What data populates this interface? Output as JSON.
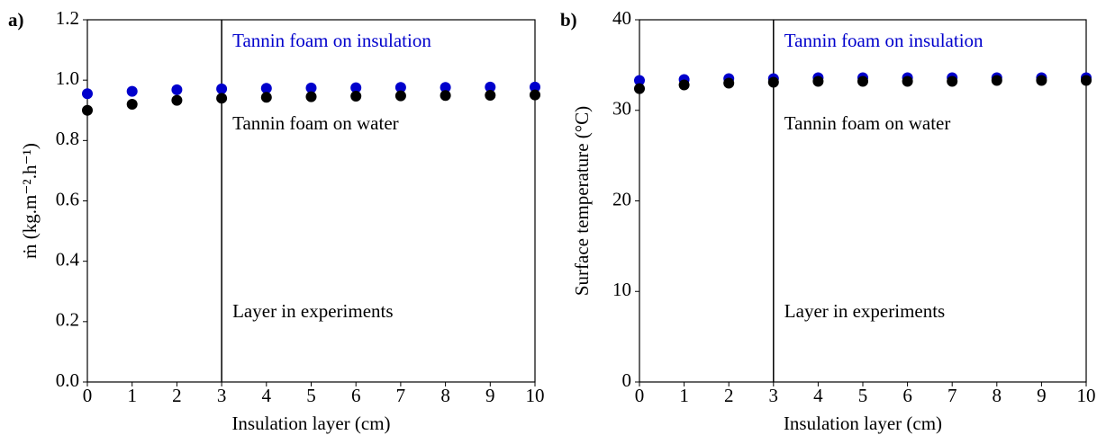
{
  "chart_data": [
    {
      "type": "scatter",
      "panel_label": "a)",
      "xlabel": "Insulation layer (cm)",
      "ylabel": "ṁ (kg.m⁻².h⁻¹)",
      "x": [
        0,
        1,
        2,
        3,
        4,
        5,
        6,
        7,
        8,
        9,
        10
      ],
      "series": [
        {
          "name": "Tannin foam on insulation",
          "color": "#0000cc",
          "values": [
            0.955,
            0.963,
            0.968,
            0.971,
            0.973,
            0.974,
            0.975,
            0.976,
            0.976,
            0.977,
            0.977
          ]
        },
        {
          "name": "Tannin foam on water",
          "color": "#000000",
          "values": [
            0.9,
            0.92,
            0.933,
            0.94,
            0.943,
            0.945,
            0.947,
            0.948,
            0.949,
            0.95,
            0.951
          ]
        }
      ],
      "vline": 3,
      "vline_label": "Layer in experiments",
      "xlim": [
        0,
        10
      ],
      "xticks": [
        0,
        1,
        2,
        3,
        4,
        5,
        6,
        7,
        8,
        9,
        10
      ],
      "ylim": [
        0,
        1.2
      ],
      "yticks": [
        {
          "value": 0,
          "label": "0.0"
        },
        0.2,
        0.4,
        0.6,
        0.8,
        {
          "value": 1,
          "label": "1.0"
        },
        1.2
      ]
    },
    {
      "type": "scatter",
      "panel_label": "b)",
      "xlabel": "Insulation layer (cm)",
      "ylabel": "Surface temperature (°C)",
      "x": [
        0,
        1,
        2,
        3,
        4,
        5,
        6,
        7,
        8,
        9,
        10
      ],
      "series": [
        {
          "name": "Tannin foam on insulation",
          "color": "#0000cc",
          "values": [
            33.3,
            33.4,
            33.5,
            33.5,
            33.6,
            33.6,
            33.6,
            33.6,
            33.6,
            33.6,
            33.6
          ]
        },
        {
          "name": "Tannin foam on water",
          "color": "#000000",
          "values": [
            32.4,
            32.8,
            33.0,
            33.1,
            33.2,
            33.2,
            33.2,
            33.2,
            33.3,
            33.3,
            33.3
          ]
        }
      ],
      "vline": 3,
      "vline_label": "Layer in experiments",
      "xlim": [
        0,
        10
      ],
      "xticks": [
        0,
        1,
        2,
        3,
        4,
        5,
        6,
        7,
        8,
        9,
        10
      ],
      "ylim": [
        0,
        40
      ],
      "yticks": [
        0,
        10,
        20,
        30,
        40
      ]
    }
  ]
}
